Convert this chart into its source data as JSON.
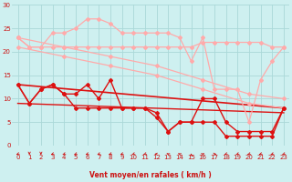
{
  "bg_color": "#cef0f0",
  "grid_color": "#aad8d8",
  "xlabel": "Vent moyen/en rafales ( km/h )",
  "xlim": [
    -0.5,
    23.5
  ],
  "ylim": [
    0,
    30
  ],
  "yticks": [
    0,
    5,
    10,
    15,
    20,
    25,
    30
  ],
  "xticks": [
    0,
    1,
    2,
    3,
    4,
    5,
    6,
    7,
    8,
    9,
    10,
    11,
    12,
    13,
    14,
    15,
    16,
    17,
    18,
    19,
    20,
    21,
    22,
    23
  ],
  "series": [
    {
      "color": "#ffaaaa",
      "lw": 0.9,
      "marker": "D",
      "ms": 2.0,
      "data": [
        [
          0,
          23
        ],
        [
          1,
          21
        ],
        [
          2,
          21
        ],
        [
          3,
          21
        ],
        [
          4,
          21
        ],
        [
          5,
          21
        ],
        [
          6,
          21
        ],
        [
          7,
          21
        ],
        [
          8,
          21
        ],
        [
          9,
          21
        ],
        [
          10,
          21
        ],
        [
          11,
          21
        ],
        [
          12,
          21
        ],
        [
          13,
          21
        ],
        [
          14,
          21
        ],
        [
          15,
          21
        ],
        [
          16,
          22
        ],
        [
          17,
          22
        ],
        [
          18,
          22
        ],
        [
          19,
          22
        ],
        [
          20,
          22
        ],
        [
          21,
          22
        ],
        [
          22,
          21
        ],
        [
          23,
          21
        ]
      ]
    },
    {
      "color": "#ffaaaa",
      "lw": 0.9,
      "marker": "D",
      "ms": 2.0,
      "data": [
        [
          0,
          23
        ],
        [
          4,
          21
        ],
        [
          8,
          19
        ],
        [
          12,
          17
        ],
        [
          16,
          14
        ],
        [
          20,
          11
        ],
        [
          23,
          10
        ]
      ]
    },
    {
      "color": "#ffaaaa",
      "lw": 0.9,
      "marker": "D",
      "ms": 2.0,
      "data": [
        [
          0,
          21
        ],
        [
          4,
          19
        ],
        [
          8,
          17
        ],
        [
          12,
          15
        ],
        [
          16,
          12
        ],
        [
          20,
          9
        ],
        [
          23,
          8
        ]
      ]
    },
    {
      "color": "#ffaaaa",
      "lw": 0.9,
      "marker": "D",
      "ms": 2.0,
      "data": [
        [
          0,
          23
        ],
        [
          1,
          21
        ],
        [
          2,
          21
        ],
        [
          3,
          24
        ],
        [
          4,
          24
        ],
        [
          5,
          25
        ],
        [
          6,
          27
        ],
        [
          7,
          27
        ],
        [
          8,
          26
        ],
        [
          9,
          24
        ],
        [
          10,
          24
        ],
        [
          11,
          24
        ],
        [
          12,
          24
        ],
        [
          13,
          24
        ],
        [
          14,
          23
        ],
        [
          15,
          18
        ],
        [
          16,
          23
        ],
        [
          17,
          12
        ],
        [
          18,
          12
        ],
        [
          19,
          12
        ],
        [
          20,
          5
        ],
        [
          21,
          14
        ],
        [
          22,
          18
        ],
        [
          23,
          21
        ]
      ]
    },
    {
      "color": "#dd1111",
      "lw": 1.0,
      "marker": "D",
      "ms": 2.0,
      "data": [
        [
          0,
          13
        ],
        [
          1,
          9
        ],
        [
          2,
          12
        ],
        [
          3,
          13
        ],
        [
          4,
          11
        ],
        [
          5,
          11
        ],
        [
          6,
          13
        ],
        [
          7,
          10
        ],
        [
          8,
          14
        ],
        [
          9,
          8
        ],
        [
          10,
          8
        ],
        [
          11,
          8
        ],
        [
          12,
          7
        ],
        [
          13,
          3
        ],
        [
          14,
          5
        ],
        [
          15,
          5
        ],
        [
          16,
          10
        ],
        [
          17,
          10
        ],
        [
          18,
          5
        ],
        [
          19,
          3
        ],
        [
          20,
          3
        ],
        [
          21,
          3
        ],
        [
          22,
          3
        ],
        [
          23,
          8
        ]
      ]
    },
    {
      "color": "#dd1111",
      "lw": 1.0,
      "marker": "D",
      "ms": 2.0,
      "data": [
        [
          0,
          13
        ],
        [
          1,
          9
        ],
        [
          2,
          12
        ],
        [
          3,
          13
        ],
        [
          4,
          11
        ],
        [
          5,
          8
        ],
        [
          6,
          8
        ],
        [
          7,
          8
        ],
        [
          8,
          8
        ],
        [
          9,
          8
        ],
        [
          10,
          8
        ],
        [
          11,
          8
        ],
        [
          12,
          6
        ],
        [
          13,
          3
        ],
        [
          14,
          5
        ],
        [
          15,
          5
        ],
        [
          16,
          5
        ],
        [
          17,
          5
        ],
        [
          18,
          2
        ],
        [
          19,
          2
        ],
        [
          20,
          2
        ],
        [
          21,
          2
        ],
        [
          22,
          2
        ],
        [
          23,
          8
        ]
      ]
    },
    {
      "color": "#dd1111",
      "lw": 1.2,
      "marker": null,
      "ms": 0,
      "data": [
        [
          0,
          13
        ],
        [
          23,
          8
        ]
      ]
    },
    {
      "color": "#dd1111",
      "lw": 1.0,
      "marker": null,
      "ms": 0,
      "data": [
        [
          0,
          9
        ],
        [
          23,
          7
        ]
      ]
    }
  ],
  "arrow_directions": [
    225,
    180,
    180,
    225,
    225,
    225,
    225,
    225,
    225,
    225,
    225,
    225,
    270,
    315,
    315,
    0,
    45,
    90,
    225,
    225,
    225,
    225,
    225,
    225
  ]
}
